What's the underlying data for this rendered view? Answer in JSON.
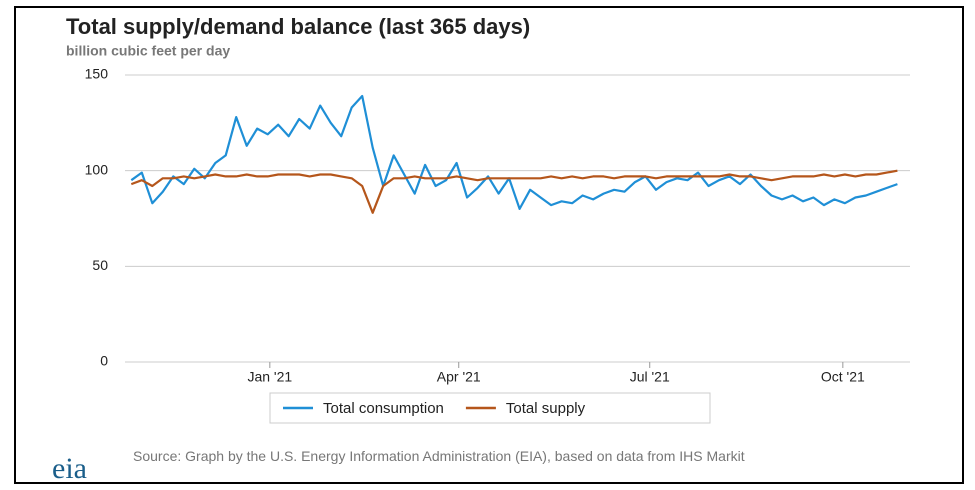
{
  "chart_data": {
    "type": "line",
    "title": "Total supply/demand balance (last 365 days)",
    "subtitle": "billion cubic feet per day",
    "x": [
      -66,
      -61,
      -56,
      -51,
      -46,
      -41,
      -36,
      -31,
      -26,
      -21,
      -16,
      -11,
      -6,
      -1,
      4,
      9,
      14,
      19,
      24,
      29,
      34,
      39,
      44,
      49,
      54,
      59,
      64,
      69,
      74,
      79,
      84,
      89,
      94,
      99,
      104,
      109,
      114,
      119,
      124,
      129,
      134,
      139,
      144,
      149,
      154,
      159,
      164,
      169,
      174,
      179,
      184,
      189,
      194,
      199,
      204,
      209,
      214,
      219,
      224,
      229,
      234,
      239,
      244,
      249,
      254,
      259,
      264,
      269,
      274,
      279,
      284,
      289,
      294,
      299
    ],
    "series": [
      {
        "name": "Total consumption",
        "color": "#1f8fd6",
        "values": [
          95,
          99,
          83,
          89,
          97,
          93,
          101,
          96,
          104,
          108,
          128,
          113,
          122,
          119,
          124,
          118,
          127,
          122,
          134,
          125,
          118,
          133,
          139,
          112,
          92,
          108,
          98,
          88,
          103,
          92,
          95,
          104,
          86,
          91,
          97,
          88,
          96,
          80,
          90,
          86,
          82,
          84,
          83,
          87,
          85,
          88,
          90,
          89,
          94,
          97,
          90,
          94,
          96,
          95,
          99,
          92,
          95,
          97,
          93,
          98,
          92,
          87,
          85,
          87,
          84,
          86,
          82,
          85,
          83,
          86,
          87,
          89,
          91,
          93
        ]
      },
      {
        "name": "Total supply",
        "color": "#b5561b",
        "values": [
          93,
          95,
          92,
          96,
          96,
          97,
          96,
          97,
          98,
          97,
          97,
          98,
          97,
          97,
          98,
          98,
          98,
          97,
          98,
          98,
          97,
          96,
          92,
          78,
          92,
          96,
          96,
          97,
          96,
          96,
          96,
          97,
          96,
          95,
          96,
          96,
          96,
          96,
          96,
          96,
          97,
          96,
          97,
          96,
          97,
          97,
          96,
          97,
          97,
          97,
          96,
          97,
          97,
          97,
          97,
          97,
          97,
          98,
          97,
          97,
          96,
          95,
          96,
          97,
          97,
          97,
          98,
          97,
          98,
          97,
          98,
          98,
          99,
          100
        ]
      }
    ],
    "xlim": [
      -69,
      305
    ],
    "xticks": [
      {
        "value": 0,
        "label": "Jan '21"
      },
      {
        "value": 90,
        "label": "Apr '21"
      },
      {
        "value": 181,
        "label": "Jul '21"
      },
      {
        "value": 273,
        "label": "Oct '21"
      }
    ],
    "ylim": [
      0,
      150
    ],
    "yticks": [
      0,
      50,
      100,
      150
    ],
    "grid": true,
    "source": "Source: Graph by the U.S. Energy Information Administration (EIA), based on data from IHS Markit",
    "logo": "eia"
  }
}
